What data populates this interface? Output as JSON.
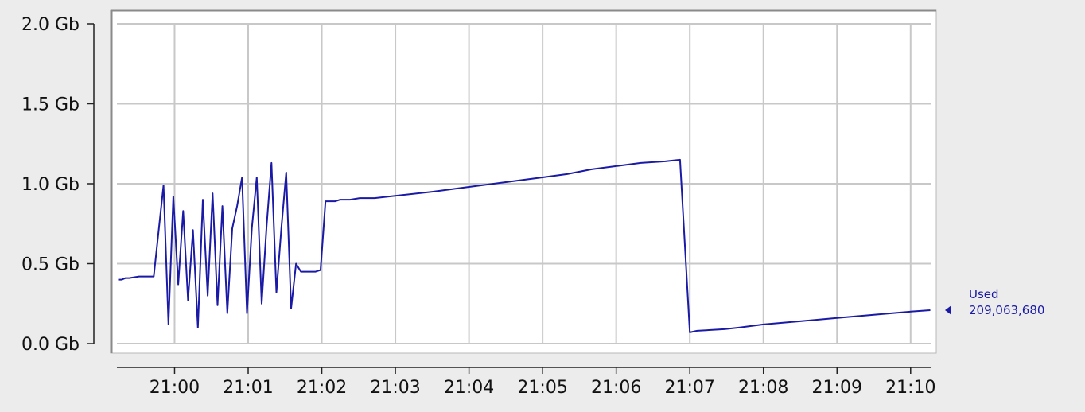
{
  "chart_data": {
    "type": "line",
    "title": "",
    "xlabel": "",
    "ylabel": "",
    "grid": true,
    "y_ticks": [
      "0.0 Gb",
      "0.5 Gb",
      "1.0 Gb",
      "1.5 Gb",
      "2.0 Gb"
    ],
    "ylim": [
      0,
      2.0
    ],
    "x_ticks": [
      "21:00",
      "21:01",
      "21:02",
      "21:03",
      "21:04",
      "21:05",
      "21:06",
      "21:07",
      "21:08",
      "21:09",
      "21:10"
    ],
    "xlim": [
      "20:59:13",
      "21:10:17"
    ],
    "series": [
      {
        "name": "Used",
        "color": "#1a1aa6",
        "x": [
          "20:59:14",
          "20:59:17",
          "20:59:20",
          "20:59:23",
          "20:59:31",
          "20:59:39",
          "20:59:43",
          "20:59:51",
          "20:59:55",
          "20:59:59",
          "21:00:03",
          "21:00:07",
          "21:00:11",
          "21:00:15",
          "21:00:19",
          "21:00:23",
          "21:00:27",
          "21:00:31",
          "21:00:35",
          "21:00:39",
          "21:00:43",
          "21:00:47",
          "21:00:51",
          "21:00:55",
          "21:00:59",
          "21:01:03",
          "21:01:07",
          "21:01:11",
          "21:01:15",
          "21:01:19",
          "21:01:23",
          "21:01:27",
          "21:01:31",
          "21:01:35",
          "21:01:39",
          "21:01:43",
          "21:01:47",
          "21:01:51",
          "21:01:55",
          "21:01:59",
          "21:02:03",
          "21:02:07",
          "21:02:11",
          "21:02:15",
          "21:02:19",
          "21:02:23",
          "21:02:31",
          "21:02:39",
          "21:02:43",
          "21:03:30",
          "21:04:00",
          "21:04:30",
          "21:05:00",
          "21:05:20",
          "21:05:40",
          "21:06:00",
          "21:06:20",
          "21:06:40",
          "21:06:52",
          "21:07:00",
          "21:07:06",
          "21:07:28",
          "21:07:40",
          "21:08:00",
          "21:08:30",
          "21:09:00",
          "21:09:30",
          "21:10:00",
          "21:10:16"
        ],
        "values": [
          0.4,
          0.4,
          0.41,
          0.41,
          0.42,
          0.42,
          0.42,
          0.99,
          0.12,
          0.92,
          0.37,
          0.83,
          0.27,
          0.71,
          0.1,
          0.9,
          0.3,
          0.94,
          0.24,
          0.86,
          0.19,
          0.72,
          0.86,
          1.04,
          0.19,
          0.72,
          1.04,
          0.25,
          0.73,
          1.13,
          0.32,
          0.72,
          1.07,
          0.22,
          0.5,
          0.45,
          0.45,
          0.45,
          0.45,
          0.46,
          0.89,
          0.89,
          0.89,
          0.9,
          0.9,
          0.9,
          0.91,
          0.91,
          0.91,
          0.95,
          0.98,
          1.01,
          1.04,
          1.06,
          1.09,
          1.11,
          1.13,
          1.14,
          1.15,
          0.07,
          0.08,
          0.09,
          0.1,
          0.12,
          0.14,
          0.16,
          0.18,
          0.2,
          0.20906368
        ]
      }
    ],
    "legend": {
      "position": "right",
      "label": "Used",
      "value_label": "209,063,680"
    }
  }
}
